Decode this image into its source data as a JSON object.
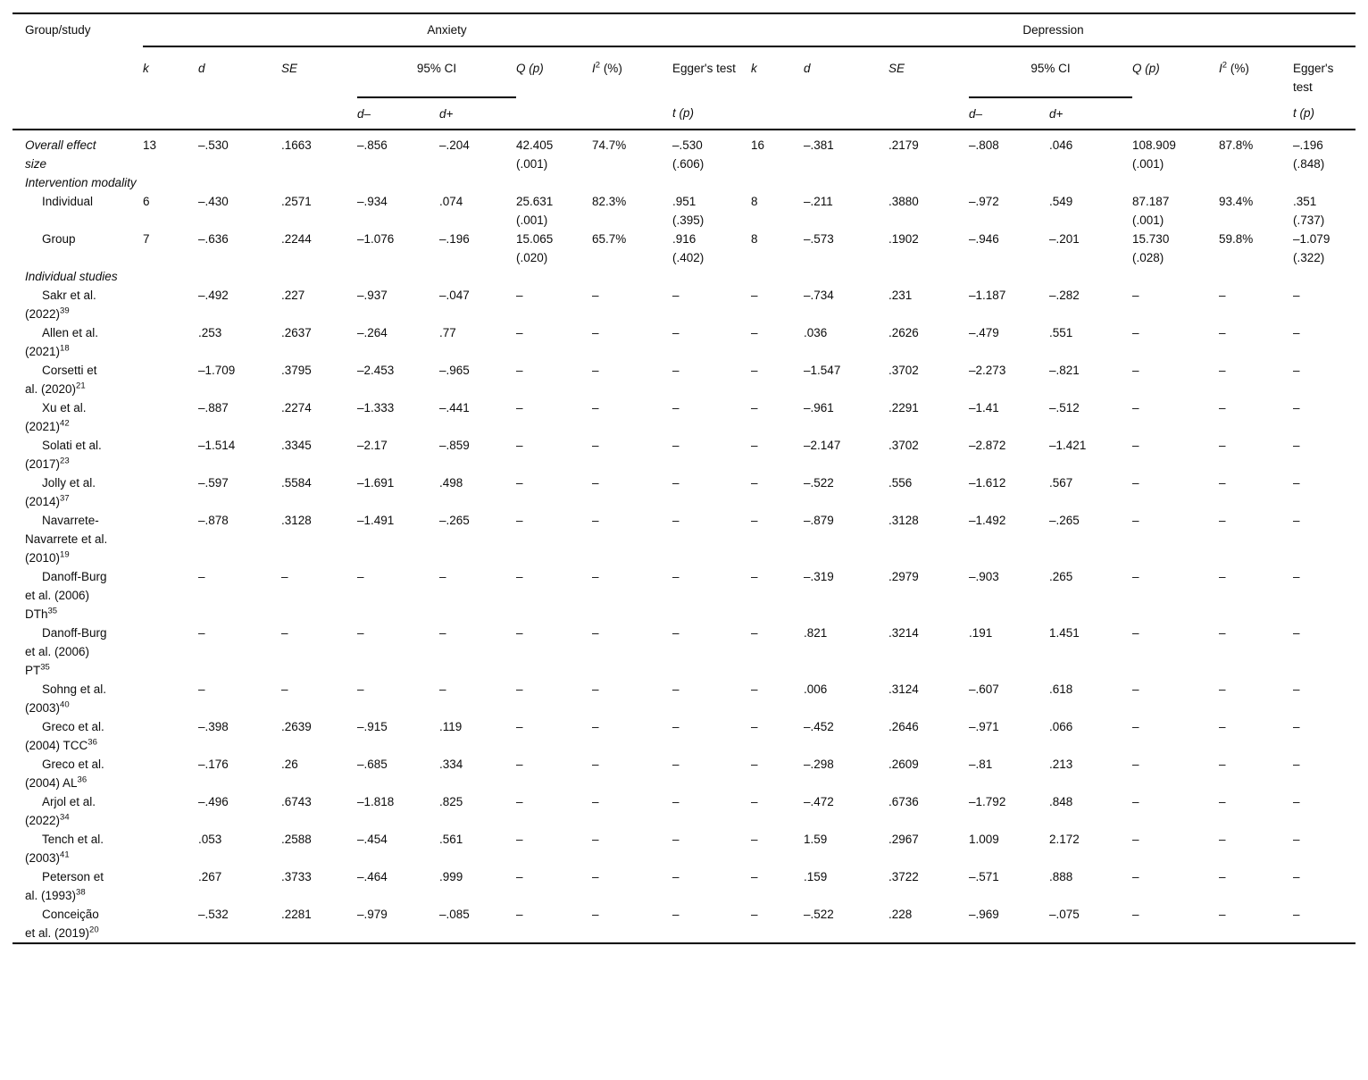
{
  "header": {
    "group_study": "Group/study",
    "anxiety": "Anxiety",
    "depression": "Depression",
    "k": "k",
    "d": "d",
    "se": "SE",
    "ci": "95% CI",
    "q": "Q (p)",
    "i2_base": "I",
    "i2_sup": "2",
    "i2_unit": " (%)",
    "egger": "Egger's test",
    "tp": "t (p)",
    "d_lo": "d–",
    "d_hi": "d+"
  },
  "table": {
    "rows": [
      {
        "label": "Overall effect size",
        "italic": true,
        "anx": {
          "k": "13",
          "d": "–.530",
          "se": ".1663",
          "dm": "–.856",
          "dp": "–.204",
          "q": "42.405\n(.001)",
          "i2": "74.7%",
          "egger": "–.530\n(.606)"
        },
        "dep": {
          "k": "16",
          "d": "–.381",
          "se": ".2179",
          "dm": "–.808",
          "dp": ".046",
          "q": "108.909\n(.001)",
          "i2": "87.8%",
          "egger": "–.196\n(.848)"
        }
      },
      {
        "label": "Intervention modality",
        "section": true,
        "italic": true
      },
      {
        "label": "Individual",
        "indent": true,
        "anx": {
          "k": "6",
          "d": "–.430",
          "se": ".2571",
          "dm": "–.934",
          "dp": ".074",
          "q": "25.631\n(.001)",
          "i2": "82.3%",
          "egger": ".951\n(.395)"
        },
        "dep": {
          "k": "8",
          "d": "–.211",
          "se": ".3880",
          "dm": "–.972",
          "dp": ".549",
          "q": "87.187\n(.001)",
          "i2": "93.4%",
          "egger": ".351\n(.737)"
        }
      },
      {
        "label": "Group",
        "indent": true,
        "anx": {
          "k": "7",
          "d": "–.636",
          "se": ".2244",
          "dm": "–1.076",
          "dp": "–.196",
          "q": "15.065\n(.020)",
          "i2": "65.7%",
          "egger": ".916\n(.402)"
        },
        "dep": {
          "k": "8",
          "d": "–.573",
          "se": ".1902",
          "dm": "–.946",
          "dp": "–.201",
          "q": "15.730\n(.028)",
          "i2": "59.8%",
          "egger": "–1.079\n(.322)"
        }
      },
      {
        "label": "Individual studies",
        "section": true,
        "italic": true
      },
      {
        "label": "Sakr et al. (2022)",
        "sup": "39",
        "indent": true,
        "anx": {
          "k": "",
          "d": "–.492",
          "se": ".227",
          "dm": "–.937",
          "dp": "–.047",
          "q": "–",
          "i2": "–",
          "egger": "–"
        },
        "dep": {
          "k": "–",
          "d": "–.734",
          "se": ".231",
          "dm": "–1.187",
          "dp": "–.282",
          "q": "–",
          "i2": "–",
          "egger": "–"
        }
      },
      {
        "label": "Allen et al. (2021)",
        "sup": "18",
        "indent": true,
        "anx": {
          "k": "",
          "d": ".253",
          "se": ".2637",
          "dm": "–.264",
          "dp": ".77",
          "q": "–",
          "i2": "–",
          "egger": "–"
        },
        "dep": {
          "k": "–",
          "d": ".036",
          "se": ".2626",
          "dm": "–.479",
          "dp": ".551",
          "q": "–",
          "i2": "–",
          "egger": "–"
        }
      },
      {
        "label": "Corsetti et al. (2020)",
        "sup": "21",
        "indent": true,
        "anx": {
          "k": "",
          "d": "–1.709",
          "se": ".3795",
          "dm": "–2.453",
          "dp": "–.965",
          "q": "–",
          "i2": "–",
          "egger": "–"
        },
        "dep": {
          "k": "–",
          "d": "–1.547",
          "se": ".3702",
          "dm": "–2.273",
          "dp": "–.821",
          "q": "–",
          "i2": "–",
          "egger": "–"
        }
      },
      {
        "label": "Xu et al. (2021)",
        "sup": "42",
        "indent": true,
        "anx": {
          "k": "",
          "d": "–.887",
          "se": ".2274",
          "dm": "–1.333",
          "dp": "–.441",
          "q": "–",
          "i2": "–",
          "egger": "–"
        },
        "dep": {
          "k": "–",
          "d": "–.961",
          "se": ".2291",
          "dm": "–1.41",
          "dp": "–.512",
          "q": "–",
          "i2": "–",
          "egger": "–"
        }
      },
      {
        "label": "Solati et al. (2017)",
        "sup": "23",
        "indent": true,
        "anx": {
          "k": "",
          "d": "–1.514",
          "se": ".3345",
          "dm": "–2.17",
          "dp": "–.859",
          "q": "–",
          "i2": "–",
          "egger": "–"
        },
        "dep": {
          "k": "–",
          "d": "–2.147",
          "se": ".3702",
          "dm": "–2.872",
          "dp": "–1.421",
          "q": "–",
          "i2": "–",
          "egger": "–"
        }
      },
      {
        "label": "Jolly et al. (2014)",
        "sup": "37",
        "indent": true,
        "anx": {
          "k": "",
          "d": "–.597",
          "se": ".5584",
          "dm": "–1.691",
          "dp": ".498",
          "q": "–",
          "i2": "–",
          "egger": "–"
        },
        "dep": {
          "k": "–",
          "d": "–.522",
          "se": ".556",
          "dm": "–1.612",
          "dp": ".567",
          "q": "–",
          "i2": "–",
          "egger": "–"
        }
      },
      {
        "label": "Navarrete-Navarrete et al. (2010)",
        "sup": "19",
        "indent": true,
        "anx": {
          "k": "",
          "d": "–.878",
          "se": ".3128",
          "dm": "–1.491",
          "dp": "–.265",
          "q": "–",
          "i2": "–",
          "egger": "–"
        },
        "dep": {
          "k": "–",
          "d": "–.879",
          "se": ".3128",
          "dm": "–1.492",
          "dp": "–.265",
          "q": "–",
          "i2": "–",
          "egger": "–"
        }
      },
      {
        "label": "Danoff-Burg et al. (2006) DTh",
        "sup": "35",
        "indent": true,
        "anx": {
          "k": "",
          "d": "–",
          "se": "–",
          "dm": "–",
          "dp": "–",
          "q": "–",
          "i2": "–",
          "egger": "–"
        },
        "dep": {
          "k": "–",
          "d": "–.319",
          "se": ".2979",
          "dm": "–.903",
          "dp": ".265",
          "q": "–",
          "i2": "–",
          "egger": "–"
        }
      },
      {
        "label": "Danoff-Burg et al. (2006) PT",
        "sup": "35",
        "indent": true,
        "anx": {
          "k": "",
          "d": "–",
          "se": "–",
          "dm": "–",
          "dp": "–",
          "q": "–",
          "i2": "–",
          "egger": "–"
        },
        "dep": {
          "k": "–",
          "d": ".821",
          "se": ".3214",
          "dm": ".191",
          "dp": "1.451",
          "q": "–",
          "i2": "–",
          "egger": "–"
        }
      },
      {
        "label": "Sohng et al. (2003)",
        "sup": "40",
        "indent": true,
        "anx": {
          "k": "",
          "d": "–",
          "se": "–",
          "dm": "–",
          "dp": "–",
          "q": "–",
          "i2": "–",
          "egger": "–"
        },
        "dep": {
          "k": "–",
          "d": ".006",
          "se": ".3124",
          "dm": "–.607",
          "dp": ".618",
          "q": "–",
          "i2": "–",
          "egger": "–"
        }
      },
      {
        "label": "Greco et al. (2004) TCC",
        "sup": "36",
        "indent": true,
        "anx": {
          "k": "",
          "d": "–.398",
          "se": ".2639",
          "dm": "–.915",
          "dp": ".119",
          "q": "–",
          "i2": "–",
          "egger": "–"
        },
        "dep": {
          "k": "–",
          "d": "–.452",
          "se": ".2646",
          "dm": "–.971",
          "dp": ".066",
          "q": "–",
          "i2": "–",
          "egger": "–"
        }
      },
      {
        "label": "Greco et al. (2004) AL",
        "sup": "36",
        "indent": true,
        "anx": {
          "k": "",
          "d": "–.176",
          "se": ".26",
          "dm": "–.685",
          "dp": ".334",
          "q": "–",
          "i2": "–",
          "egger": "–"
        },
        "dep": {
          "k": "–",
          "d": "–.298",
          "se": ".2609",
          "dm": "–.81",
          "dp": ".213",
          "q": "–",
          "i2": "–",
          "egger": "–"
        }
      },
      {
        "label": "Arjol et al. (2022)",
        "sup": "34",
        "indent": true,
        "anx": {
          "k": "",
          "d": "–.496",
          "se": ".6743",
          "dm": "–1.818",
          "dp": ".825",
          "q": "–",
          "i2": "–",
          "egger": "–"
        },
        "dep": {
          "k": "–",
          "d": "–.472",
          "se": ".6736",
          "dm": "–1.792",
          "dp": ".848",
          "q": "–",
          "i2": "–",
          "egger": "–"
        }
      },
      {
        "label": "Tench et al. (2003)",
        "sup": "41",
        "indent": true,
        "anx": {
          "k": "",
          "d": ".053",
          "se": ".2588",
          "dm": "–.454",
          "dp": ".561",
          "q": "–",
          "i2": "–",
          "egger": "–"
        },
        "dep": {
          "k": "–",
          "d": "1.59",
          "se": ".2967",
          "dm": "1.009",
          "dp": "2.172",
          "q": "–",
          "i2": "–",
          "egger": "–"
        }
      },
      {
        "label": "Peterson et al. (1993)",
        "sup": "38",
        "indent": true,
        "anx": {
          "k": "",
          "d": ".267",
          "se": ".3733",
          "dm": "–.464",
          "dp": ".999",
          "q": "–",
          "i2": "–",
          "egger": "–"
        },
        "dep": {
          "k": "–",
          "d": ".159",
          "se": ".3722",
          "dm": "–.571",
          "dp": ".888",
          "q": "–",
          "i2": "–",
          "egger": "–"
        }
      },
      {
        "label": "Conceição et al. (2019)",
        "sup": "20",
        "indent": true,
        "anx": {
          "k": "",
          "d": "–.532",
          "se": ".2281",
          "dm": "–.979",
          "dp": "–.085",
          "q": "–",
          "i2": "–",
          "egger": "–"
        },
        "dep": {
          "k": "–",
          "d": "–.522",
          "se": ".228",
          "dm": "–.969",
          "dp": "–.075",
          "q": "–",
          "i2": "–",
          "egger": "–"
        }
      }
    ]
  }
}
